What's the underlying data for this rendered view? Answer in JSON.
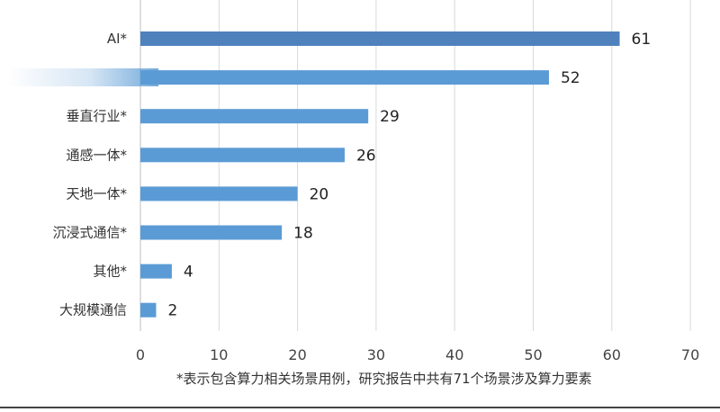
{
  "chart_data": {
    "type": "bar",
    "orientation": "horizontal",
    "categories": [
      "AI*",
      "",
      "垂直行业*",
      "通感一体*",
      "天地一体*",
      "沉浸式通信*",
      "其他*",
      "大规模通信"
    ],
    "values": [
      61,
      52,
      29,
      26,
      20,
      18,
      4,
      2
    ],
    "value_labels": [
      "61",
      "52",
      "29",
      "26",
      "20",
      "18",
      "4",
      "2"
    ],
    "xlim": [
      0,
      70
    ],
    "xticks": [
      "0",
      "10",
      "20",
      "30",
      "40",
      "50",
      "60",
      "70"
    ],
    "grid": "vertical",
    "colors": {
      "first_bar": "#4F81BD",
      "bars": "#5B9BD5",
      "grid": "#D9D9D9"
    },
    "footnote": "*表示包含算力相关场景用例，研究报告中共有71个场景涉及算力要素"
  }
}
